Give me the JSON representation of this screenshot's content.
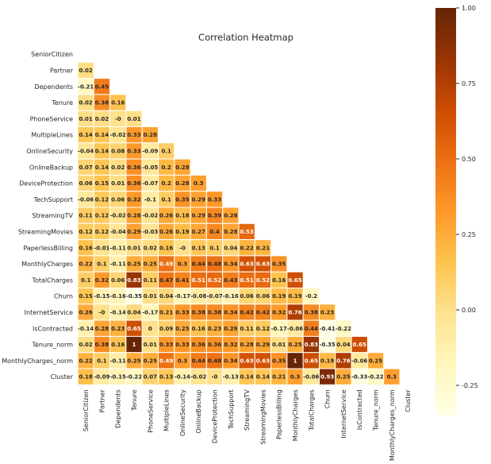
{
  "chart_data": {
    "type": "heatmap",
    "title": "Correlation Heatmap",
    "mask": "upper-triangle-including-diagonal",
    "labels": [
      "SeniorCitizen",
      "Partner",
      "Dependents",
      "Tenure",
      "PhoneService",
      "MultipleLines",
      "OnlineSecurity",
      "OnlineBackup",
      "DeviceProtection",
      "TechSupport",
      "StreamingTV",
      "StreamingMovies",
      "PaperlessBilling",
      "MonthlyCharges",
      "TotalCharges",
      "Churn",
      "InternetService",
      "IsContracted",
      "Tenure_norm",
      "MonthlyCharges_norm",
      "Cluster"
    ],
    "matrix_lower": [
      [],
      [
        "0.02"
      ],
      [
        "-0.21",
        "0.45"
      ],
      [
        "0.02",
        "0.38",
        "0.16"
      ],
      [
        "0.01",
        "0.02",
        "-0",
        "0.01"
      ],
      [
        "0.14",
        "0.14",
        "-0.02",
        "0.33",
        "0.28"
      ],
      [
        "-0.04",
        "0.14",
        "0.08",
        "0.33",
        "-0.09",
        "0.1"
      ],
      [
        "0.07",
        "0.14",
        "0.02",
        "0.36",
        "-0.05",
        "0.2",
        "0.28"
      ],
      [
        "0.06",
        "0.15",
        "0.01",
        "0.36",
        "-0.07",
        "0.2",
        "0.28",
        "0.3"
      ],
      [
        "-0.06",
        "0.12",
        "0.06",
        "0.32",
        "-0.1",
        "0.1",
        "0.35",
        "0.29",
        "0.33"
      ],
      [
        "0.11",
        "0.12",
        "-0.02",
        "0.28",
        "-0.02",
        "0.26",
        "0.18",
        "0.29",
        "0.39",
        "0.28"
      ],
      [
        "0.12",
        "0.12",
        "-0.04",
        "0.29",
        "-0.03",
        "0.26",
        "0.19",
        "0.27",
        "0.4",
        "0.28",
        "0.53"
      ],
      [
        "0.16",
        "-0.01",
        "-0.11",
        "0.01",
        "0.02",
        "0.16",
        "-0",
        "0.13",
        "0.1",
        "0.04",
        "0.22",
        "0.21"
      ],
      [
        "0.22",
        "0.1",
        "-0.11",
        "0.25",
        "0.25",
        "0.49",
        "0.3",
        "0.44",
        "0.48",
        "0.34",
        "0.63",
        "0.63",
        "0.35"
      ],
      [
        "0.1",
        "0.32",
        "0.06",
        "0.83",
        "0.11",
        "0.47",
        "0.41",
        "0.51",
        "0.52",
        "0.43",
        "0.51",
        "0.52",
        "0.16",
        "0.65"
      ],
      [
        "0.15",
        "-0.15",
        "-0.16",
        "-0.35",
        "0.01",
        "0.04",
        "-0.17",
        "-0.08",
        "-0.07",
        "-0.16",
        "0.06",
        "0.06",
        "0.19",
        "0.19",
        "-0.2"
      ],
      [
        "0.26",
        "-0",
        "-0.14",
        "0.04",
        "-0.17",
        "0.21",
        "0.33",
        "0.38",
        "0.38",
        "0.34",
        "0.42",
        "0.42",
        "0.32",
        "0.76",
        "0.38",
        "0.23"
      ],
      [
        "-0.14",
        "0.28",
        "0.23",
        "0.65",
        "0",
        "0.09",
        "0.25",
        "0.16",
        "0.23",
        "0.29",
        "0.11",
        "0.12",
        "-0.17",
        "-0.06",
        "0.44",
        "-0.41",
        "-0.22"
      ],
      [
        "0.02",
        "0.38",
        "0.16",
        "1",
        "0.01",
        "0.33",
        "0.33",
        "0.36",
        "0.36",
        "0.32",
        "0.28",
        "0.29",
        "0.01",
        "0.25",
        "0.83",
        "-0.35",
        "0.04",
        "0.65"
      ],
      [
        "0.22",
        "0.1",
        "-0.11",
        "0.25",
        "0.25",
        "0.49",
        "0.3",
        "0.44",
        "0.48",
        "0.34",
        "0.63",
        "0.63",
        "0.35",
        "1",
        "0.65",
        "0.19",
        "0.76",
        "-0.06",
        "0.25"
      ],
      [
        "0.18",
        "-0.09",
        "-0.15",
        "-0.22",
        "0.07",
        "0.13",
        "-0.14",
        "-0.02",
        "-0",
        "-0.13",
        "0.14",
        "0.14",
        "0.21",
        "0.3",
        "-0.06",
        "0.93",
        "0.25",
        "-0.33",
        "-0.22",
        "0.3"
      ]
    ],
    "colormap": "YlOrBr",
    "colorbar": {
      "vmin": -0.35,
      "vmax": 1.0,
      "ticks": [
        -0.25,
        0,
        0.25,
        0.5,
        0.75,
        1.0
      ],
      "tick_labels": [
        "-0.25",
        "0.00",
        "0.25",
        "0.50",
        "0.75",
        "1.00"
      ]
    }
  }
}
